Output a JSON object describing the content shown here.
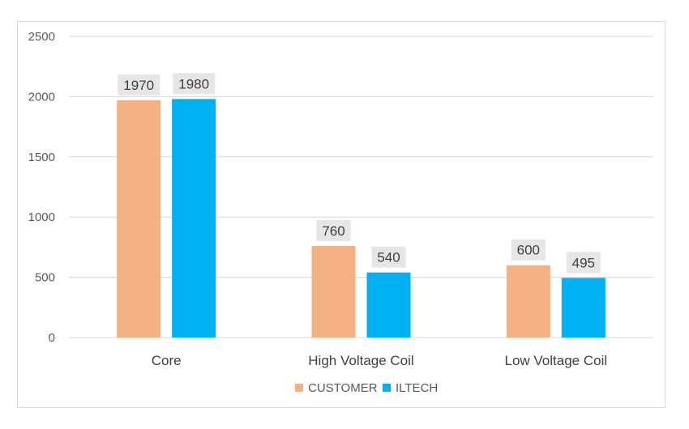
{
  "chart_data": {
    "type": "bar",
    "title": "",
    "xlabel": "",
    "ylabel": "",
    "categories": [
      "Core",
      "High Voltage Coil",
      "Low Voltage Coil"
    ],
    "series": [
      {
        "name": "CUSTOMER",
        "values": [
          1970,
          760,
          600
        ],
        "color": "#f4b183"
      },
      {
        "name": "ILTECH",
        "values": [
          1980,
          540,
          495
        ],
        "color": "#00b0f0"
      }
    ],
    "ylim": [
      0,
      2500
    ],
    "yticks": [
      0,
      500,
      1000,
      1500,
      2000,
      2500
    ],
    "grid": true,
    "data_labels": true,
    "legend_position": "bottom"
  }
}
